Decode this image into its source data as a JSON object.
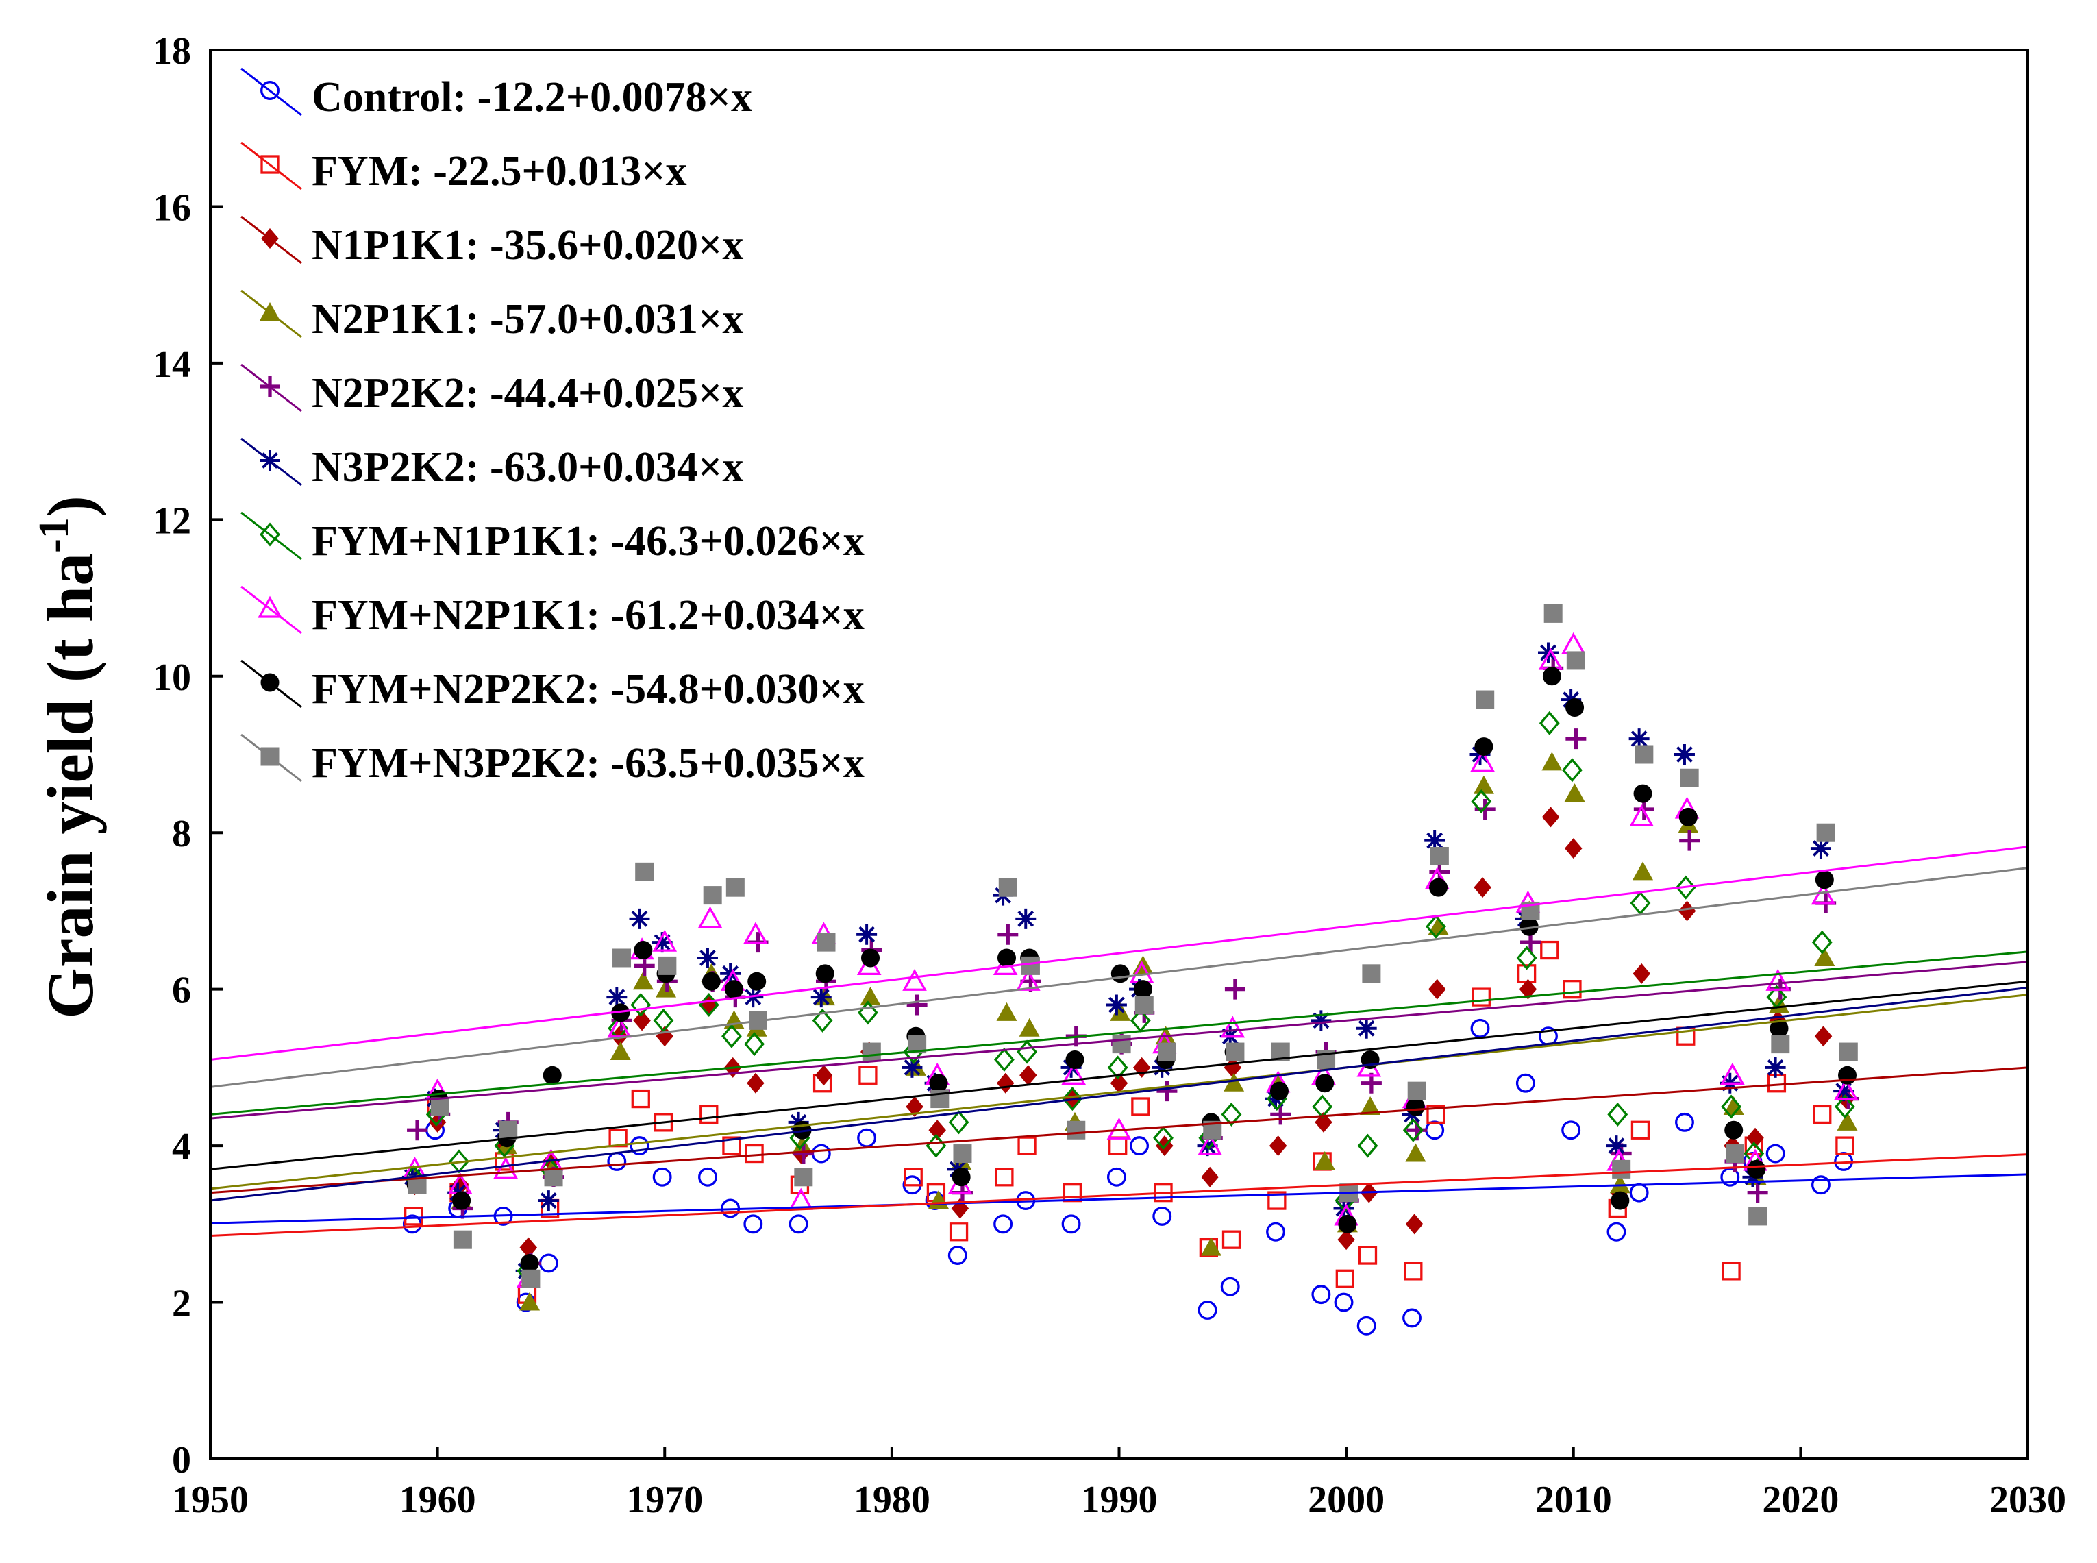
{
  "chart_data": {
    "type": "scatter",
    "title": "",
    "xlabel": "",
    "ylabel": "Grain yield (t ha",
    "ylabel_unit_exponent": "-1",
    "ylabel_close": ")",
    "xlim": [
      1950,
      2030
    ],
    "ylim": [
      0,
      18
    ],
    "xticks": [
      1950,
      1960,
      1970,
      1980,
      1990,
      2000,
      2010,
      2020,
      2030
    ],
    "yticks": [
      0,
      2,
      4,
      6,
      8,
      10,
      12,
      14,
      16,
      18
    ],
    "grid": false,
    "legend_position": "top-left",
    "years": [
      1959,
      1960,
      1961,
      1963,
      1964,
      1965,
      1968,
      1969,
      1970,
      1972,
      1973,
      1974,
      1976,
      1977,
      1979,
      1981,
      1982,
      1983,
      1985,
      1986,
      1988,
      1990,
      1991,
      1992,
      1994,
      1995,
      1997,
      1999,
      2000,
      2001,
      2003,
      2004,
      2006,
      2008,
      2009,
      2010,
      2012,
      2013,
      2015,
      2017,
      2018,
      2019,
      2021,
      2022
    ],
    "series": [
      {
        "name": "Control",
        "label": "Control: -12.2+0.0078×x",
        "intercept": -12.2,
        "slope": 0.0078,
        "color": "#0000ee",
        "marker": "circle-open",
        "values": [
          3.0,
          4.2,
          3.2,
          3.1,
          2.0,
          2.5,
          3.8,
          4.0,
          3.6,
          3.6,
          3.2,
          3.0,
          3.0,
          3.9,
          4.1,
          3.5,
          3.3,
          2.6,
          3.0,
          3.3,
          3.0,
          3.6,
          4.0,
          3.1,
          1.9,
          2.2,
          2.9,
          2.1,
          2.0,
          1.7,
          1.8,
          4.2,
          5.5,
          4.8,
          5.4,
          4.2,
          2.9,
          3.4,
          4.3,
          3.6,
          3.8,
          3.9,
          3.5,
          3.8
        ]
      },
      {
        "name": "FYM",
        "label": "FYM: -22.5+0.013×x",
        "intercept": -22.5,
        "slope": 0.013,
        "color": "#ee1111",
        "marker": "square-open",
        "values": [
          3.1,
          4.5,
          3.4,
          3.8,
          2.1,
          3.2,
          4.1,
          4.6,
          4.3,
          4.4,
          4.0,
          3.9,
          3.5,
          4.8,
          4.9,
          3.6,
          3.4,
          2.9,
          3.6,
          4.0,
          3.4,
          4.0,
          4.5,
          3.4,
          2.7,
          2.8,
          3.3,
          3.8,
          2.3,
          2.6,
          2.4,
          4.4,
          5.9,
          6.2,
          6.5,
          6.0,
          3.2,
          4.2,
          5.4,
          2.4,
          4.0,
          4.8,
          4.4,
          4.0
        ]
      },
      {
        "name": "N1P1K1",
        "label": "N1P1K1: -35.6+0.020×x",
        "intercept": -35.6,
        "slope": 0.02,
        "color": "#aa0000",
        "marker": "diamond-filled",
        "values": [
          3.5,
          4.3,
          3.5,
          4.0,
          2.7,
          3.8,
          5.4,
          5.6,
          5.4,
          5.8,
          5.0,
          4.8,
          3.9,
          4.9,
          5.2,
          4.5,
          4.2,
          3.2,
          4.8,
          4.9,
          4.6,
          4.8,
          5.0,
          4.0,
          3.6,
          5.0,
          4.0,
          4.3,
          2.8,
          3.4,
          3.0,
          6.0,
          7.3,
          6.0,
          8.2,
          7.8,
          3.4,
          6.2,
          7.0,
          4.0,
          4.1,
          5.6,
          5.4,
          4.6
        ]
      },
      {
        "name": "N2P1K1",
        "label": "N2P1K1: -57.0+0.031×x",
        "intercept": -57.0,
        "slope": 0.031,
        "color": "#808000",
        "marker": "triangle-filled",
        "values": [
          3.6,
          4.5,
          3.3,
          4.0,
          2.0,
          3.7,
          5.2,
          6.1,
          6.0,
          6.2,
          5.6,
          5.5,
          4.0,
          5.9,
          5.9,
          5.0,
          3.3,
          3.8,
          5.7,
          5.5,
          4.3,
          5.7,
          6.3,
          5.4,
          2.7,
          4.8,
          4.8,
          3.8,
          3.0,
          4.5,
          3.9,
          6.8,
          8.6,
          7.0,
          8.9,
          8.5,
          3.5,
          7.5,
          8.1,
          4.5,
          3.6,
          5.8,
          6.4,
          4.3
        ]
      },
      {
        "name": "N2P2K2",
        "label": "N2P2K2: -44.4+0.025×x",
        "intercept": -44.4,
        "slope": 0.025,
        "color": "#800080",
        "marker": "plus",
        "values": [
          4.2,
          4.4,
          3.2,
          4.3,
          2.5,
          3.6,
          5.6,
          6.3,
          6.1,
          6.1,
          5.9,
          6.6,
          3.9,
          6.1,
          6.5,
          5.8,
          4.7,
          3.4,
          6.7,
          6.1,
          5.4,
          5.3,
          5.7,
          4.7,
          4.1,
          6.0,
          4.4,
          5.2,
          3.3,
          4.8,
          4.2,
          7.5,
          8.3,
          6.6,
          10.1,
          9.2,
          3.9,
          8.3,
          7.9,
          3.8,
          3.4,
          6.0,
          7.1,
          4.6
        ]
      },
      {
        "name": "N3P2K2",
        "label": "N3P2K2: -63.0+0.034×x",
        "intercept": -63.0,
        "slope": 0.034,
        "color": "#000080",
        "marker": "asterisk",
        "values": [
          3.6,
          4.6,
          3.4,
          4.2,
          2.4,
          3.3,
          5.9,
          6.9,
          6.6,
          6.4,
          6.2,
          5.9,
          4.3,
          5.9,
          6.7,
          5.0,
          4.8,
          3.7,
          7.2,
          6.9,
          5.0,
          5.8,
          6.0,
          5.0,
          4.0,
          5.4,
          4.6,
          5.6,
          3.2,
          5.5,
          4.4,
          7.9,
          9.0,
          6.9,
          10.3,
          9.7,
          4.0,
          9.2,
          9.0,
          4.8,
          3.6,
          5.0,
          7.8,
          4.7
        ]
      },
      {
        "name": "FYM+N1P1K1",
        "label": "FYM+N1P1K1: -46.3+0.026×x",
        "intercept": -46.3,
        "slope": 0.026,
        "color": "#008000",
        "marker": "diamond-open",
        "values": [
          3.6,
          4.4,
          3.8,
          4.0,
          2.4,
          3.7,
          5.5,
          5.8,
          5.6,
          5.8,
          5.4,
          5.3,
          4.1,
          5.6,
          5.7,
          5.2,
          4.0,
          4.3,
          5.1,
          5.2,
          4.6,
          5.0,
          5.6,
          4.1,
          4.1,
          4.4,
          4.6,
          4.5,
          3.3,
          4.0,
          4.2,
          6.8,
          8.4,
          6.4,
          9.4,
          8.8,
          4.4,
          7.1,
          7.3,
          4.5,
          3.9,
          5.9,
          6.6,
          4.5
        ]
      },
      {
        "name": "FYM+N2P1K1",
        "label": "FYM+N2P1K1: -61.2+0.034×x",
        "intercept": -61.2,
        "slope": 0.034,
        "color": "#ff00ff",
        "marker": "triangle-open",
        "values": [
          3.7,
          4.7,
          3.5,
          3.7,
          2.3,
          3.8,
          5.5,
          6.5,
          6.6,
          6.9,
          6.1,
          6.7,
          3.3,
          6.7,
          6.3,
          6.1,
          4.9,
          3.5,
          6.3,
          6.1,
          4.9,
          4.2,
          6.2,
          5.3,
          4.0,
          5.5,
          4.8,
          4.9,
          3.1,
          5.0,
          4.6,
          7.4,
          8.9,
          7.1,
          10.2,
          10.4,
          3.8,
          8.2,
          8.3,
          4.9,
          3.8,
          6.1,
          7.2,
          4.7
        ]
      },
      {
        "name": "FYM+N2P2K2",
        "label": "FYM+N2P2K2: -54.8+0.030×x",
        "intercept": -54.8,
        "slope": 0.03,
        "color": "#000000",
        "marker": "circle-filled",
        "values": [
          3.5,
          4.6,
          3.3,
          4.1,
          2.5,
          4.9,
          5.7,
          6.5,
          6.2,
          6.1,
          6.0,
          6.1,
          4.2,
          6.2,
          6.4,
          5.4,
          4.8,
          3.6,
          6.4,
          6.4,
          5.1,
          6.2,
          6.0,
          5.1,
          4.3,
          5.2,
          4.7,
          4.8,
          3.0,
          5.1,
          4.5,
          7.3,
          9.1,
          6.8,
          10.0,
          9.6,
          3.3,
          8.5,
          8.2,
          4.2,
          3.7,
          5.5,
          7.4,
          4.9
        ]
      },
      {
        "name": "FYM+N3P2K2",
        "label": "FYM+N3P2K2: -63.5+0.035×x",
        "intercept": -63.5,
        "slope": 0.035,
        "color": "#808080",
        "marker": "square-filled",
        "values": [
          3.5,
          4.5,
          2.8,
          4.2,
          2.3,
          3.6,
          6.4,
          7.5,
          6.3,
          7.2,
          7.3,
          5.6,
          3.6,
          6.6,
          5.2,
          5.3,
          4.6,
          3.9,
          7.3,
          6.3,
          4.2,
          5.3,
          5.8,
          5.2,
          4.2,
          5.2,
          5.2,
          5.1,
          3.4,
          6.2,
          4.7,
          7.7,
          9.7,
          7.0,
          10.8,
          10.2,
          3.7,
          9.0,
          8.7,
          3.9,
          3.1,
          5.3,
          8.0,
          5.2
        ]
      }
    ]
  }
}
